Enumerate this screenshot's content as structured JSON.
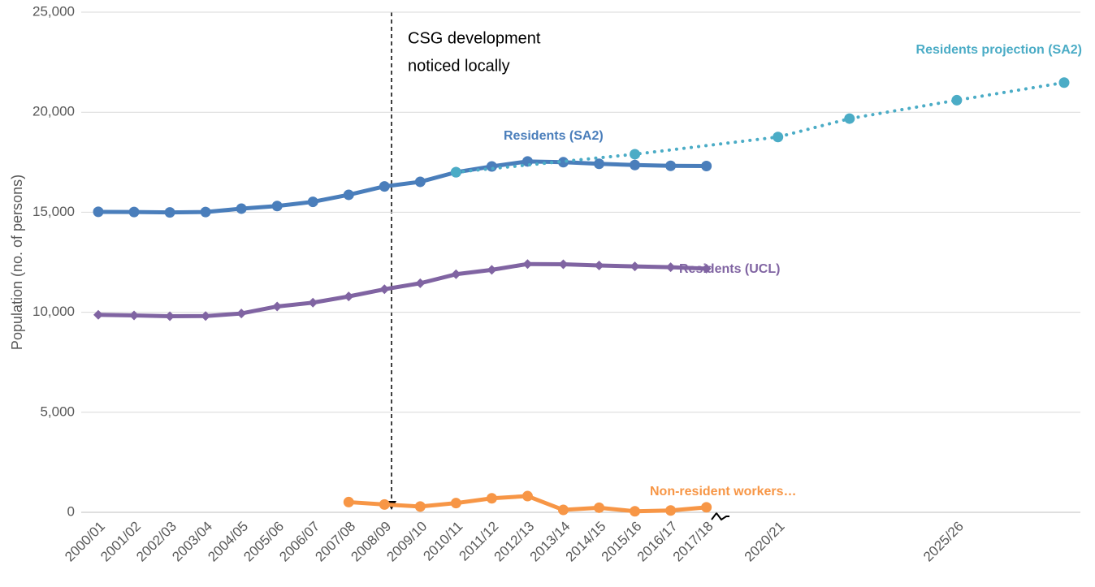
{
  "chart_data": {
    "type": "line",
    "y_label": "Population (no. of persons)",
    "annotation": [
      "CSG development",
      "noticed locally"
    ],
    "categories": [
      "2000/01",
      "2001/02",
      "2002/03",
      "2003/04",
      "2004/05",
      "2005/06",
      "2006/07",
      "2007/08",
      "2008/09",
      "2009/10",
      "2010/11",
      "2011/12",
      "2012/13",
      "2013/14",
      "2014/15",
      "2015/16",
      "2016/17",
      "2017/18",
      null,
      "2020/21",
      null,
      null,
      null,
      null,
      "2025/26",
      null,
      null,
      null
    ],
    "ylim": [
      0,
      25000
    ],
    "yticks": [
      {
        "value": 0,
        "label": "0"
      },
      {
        "value": 5000,
        "label": "5,000"
      },
      {
        "value": 10000,
        "label": "10,000"
      },
      {
        "value": 15000,
        "label": "15,000"
      },
      {
        "value": 20000,
        "label": "20,000"
      },
      {
        "value": 25000,
        "label": "25,000"
      }
    ],
    "grid": true,
    "series": [
      {
        "name": "Residents (SA2)",
        "color": "#4a7ebb",
        "marker": "circle",
        "line": "solid",
        "values": [
          15020,
          15010,
          14990,
          15010,
          15180,
          15310,
          15520,
          15870,
          16290,
          16520,
          17000,
          17290,
          17540,
          17500,
          17420,
          17360,
          17320,
          17310,
          null,
          null,
          null,
          null,
          null,
          null,
          null,
          null,
          null,
          null
        ]
      },
      {
        "name": "Residents (UCL)",
        "color": "#8064a2",
        "marker": "diamond",
        "line": "solid",
        "values": [
          9870,
          9840,
          9800,
          9810,
          9940,
          10290,
          10480,
          10790,
          11150,
          11450,
          11900,
          12120,
          12410,
          12400,
          12340,
          12290,
          12250,
          12180,
          null,
          null,
          null,
          null,
          null,
          null,
          null,
          null,
          null,
          null
        ]
      },
      {
        "name": "Non-resident workers…",
        "color": "#f79646",
        "marker": "circle",
        "line": "solid",
        "values": [
          null,
          null,
          null,
          null,
          null,
          null,
          null,
          510,
          390,
          290,
          460,
          700,
          810,
          120,
          230,
          50,
          90,
          250,
          null,
          null,
          null,
          null,
          null,
          null,
          null,
          null,
          null,
          null
        ]
      },
      {
        "name": "Residents projection (SA2)",
        "color": "#4bacc6",
        "marker": "circle",
        "line": "dotted",
        "connect_gaps": true,
        "values": [
          null,
          null,
          null,
          null,
          null,
          null,
          null,
          null,
          null,
          null,
          17000,
          null,
          null,
          null,
          null,
          17900,
          null,
          null,
          null,
          18760,
          null,
          19680,
          null,
          null,
          20600,
          null,
          null,
          21480
        ]
      }
    ]
  }
}
